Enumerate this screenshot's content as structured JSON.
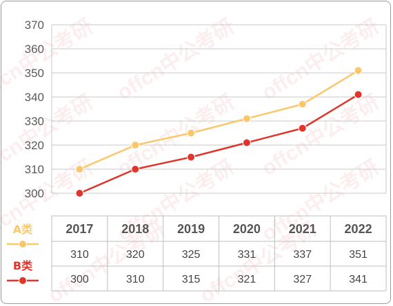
{
  "chart_data": {
    "type": "line",
    "title": "",
    "xlabel": "",
    "ylabel": "",
    "categories": [
      "2017",
      "2018",
      "2019",
      "2020",
      "2021",
      "2022"
    ],
    "ylim": [
      300,
      370
    ],
    "yticks": [
      300,
      310,
      320,
      330,
      340,
      350,
      360,
      370
    ],
    "grid": true,
    "legend_position": "left of data table",
    "series": [
      {
        "name": "A类",
        "color": "#fbc76a",
        "values": [
          310,
          320,
          325,
          331,
          337,
          351
        ]
      },
      {
        "name": "B类",
        "color": "#e0352b",
        "values": [
          300,
          310,
          315,
          321,
          327,
          341
        ]
      }
    ],
    "watermark": "offcn中公考研"
  }
}
